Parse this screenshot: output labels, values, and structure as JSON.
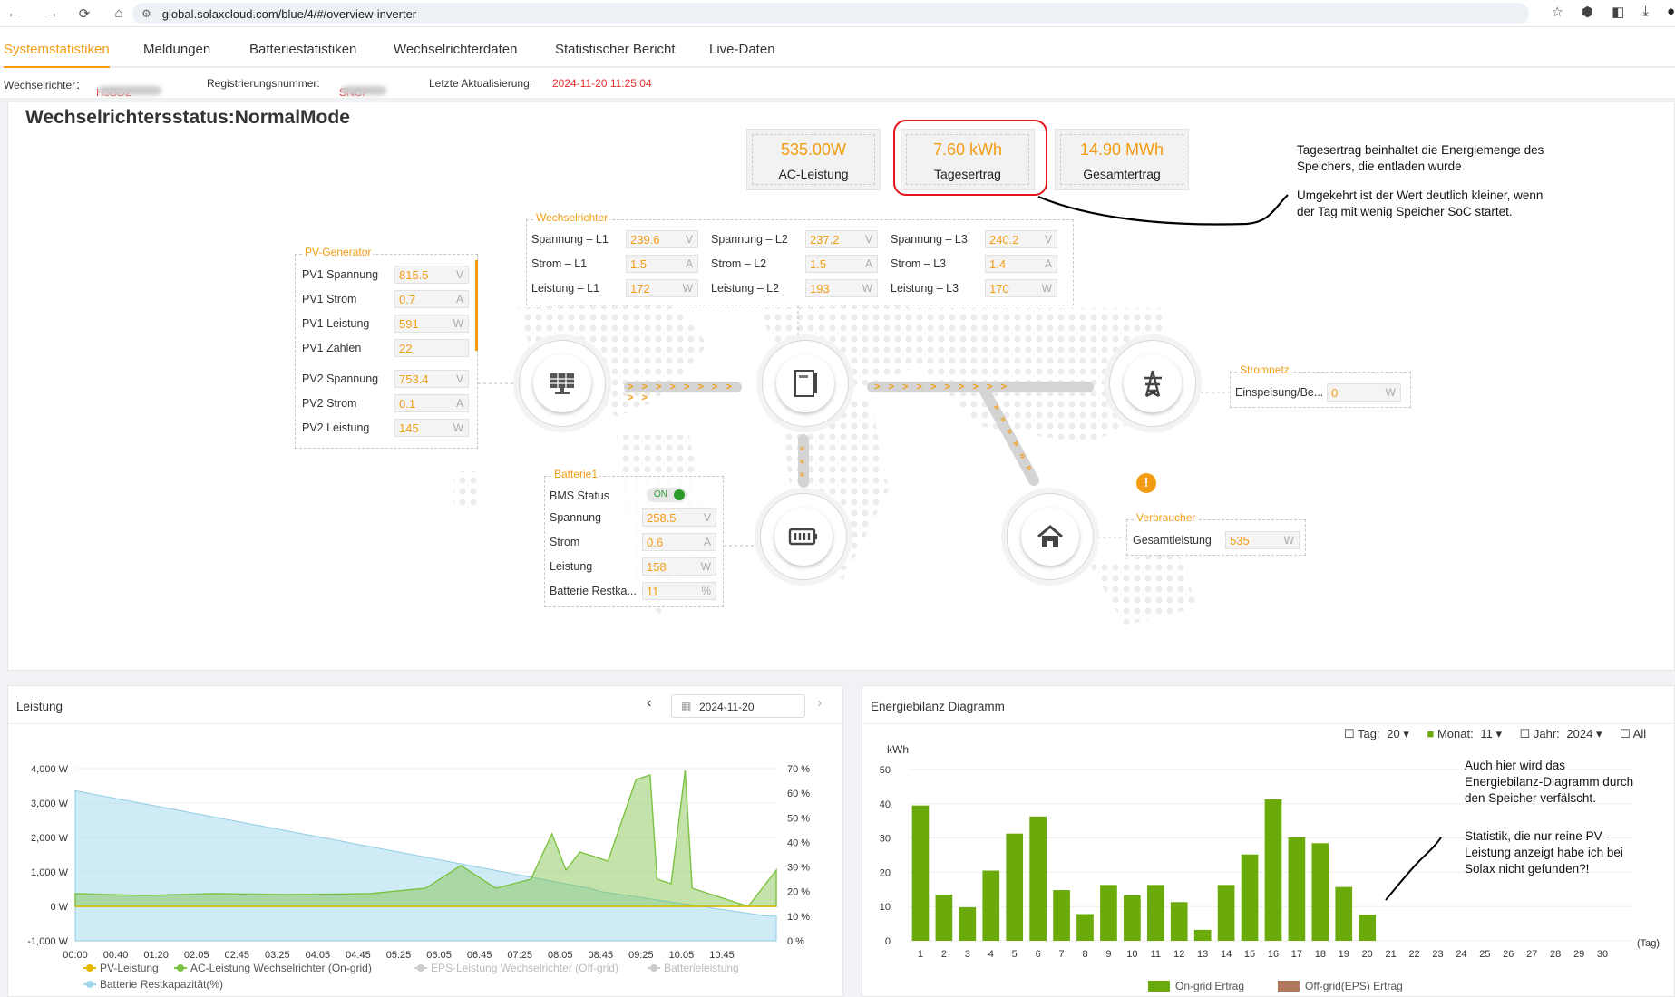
{
  "browser": {
    "url": "global.solaxcloud.com/blue/4/#/overview-inverter"
  },
  "tabs": [
    "Systemstatistiken",
    "Meldungen",
    "Batteriestatistiken",
    "Wechselrichterdaten",
    "Statistischer Bericht",
    "Live-Daten"
  ],
  "infobar": {
    "inverter_label": "Wechselrichter：",
    "inverter_value": "H3BD2",
    "reg_label": "Registrierungsnummer:",
    "reg_value": "SNCP",
    "update_label": "Letzte Aktualisierung:",
    "update_value": "2024-11-20 11:25:04"
  },
  "status_title": "Wechselrichtersstatus:NormalMode",
  "kpis": [
    {
      "value": "535.00W",
      "label": "AC-Leistung"
    },
    {
      "value": "7.60 kWh",
      "label": "Tagesertrag"
    },
    {
      "value": "14.90 MWh",
      "label": "Gesamtertrag"
    }
  ],
  "annotation_top": {
    "line1": "Tagesertrag beinhaltet die Energiemenge des",
    "line2": "Speichers, die entladen wurde",
    "line3": "Umgekehrt ist der Wert deutlich kleiner, wenn",
    "line4": "der Tag mit wenig Speicher SoC startet."
  },
  "pv": {
    "title": "PV-Generator",
    "rows": [
      {
        "label": "PV1 Spannung",
        "value": "815.5",
        "unit": "V"
      },
      {
        "label": "PV1 Strom",
        "value": "0.7",
        "unit": "A"
      },
      {
        "label": "PV1 Leistung",
        "value": "591",
        "unit": "W"
      },
      {
        "label": "PV1 Zahlen",
        "value": "22",
        "unit": ""
      },
      {
        "label": "PV2 Spannung",
        "value": "753.4",
        "unit": "V"
      },
      {
        "label": "PV2 Strom",
        "value": "0.1",
        "unit": "A"
      },
      {
        "label": "PV2 Leistung",
        "value": "145",
        "unit": "W"
      }
    ]
  },
  "inverter": {
    "title": "Wechselrichter",
    "cells": [
      {
        "label": "Spannung – L1",
        "value": "239.6",
        "unit": "V"
      },
      {
        "label": "Spannung – L2",
        "value": "237.2",
        "unit": "V"
      },
      {
        "label": "Spannung – L3",
        "value": "240.2",
        "unit": "V"
      },
      {
        "label": "Strom – L1",
        "value": "1.5",
        "unit": "A"
      },
      {
        "label": "Strom – L2",
        "value": "1.5",
        "unit": "A"
      },
      {
        "label": "Strom – L3",
        "value": "1.4",
        "unit": "A"
      },
      {
        "label": "Leistung – L1",
        "value": "172",
        "unit": "W"
      },
      {
        "label": "Leistung – L2",
        "value": "193",
        "unit": "W"
      },
      {
        "label": "Leistung – L3",
        "value": "170",
        "unit": "W"
      }
    ]
  },
  "grid": {
    "title": "Stromnetz",
    "label": "Einspeisung/Be...",
    "value": "0",
    "unit": "W"
  },
  "battery": {
    "title": "Batterie1",
    "bms_label": "BMS Status",
    "bms_value": "ON",
    "rows": [
      {
        "label": "Spannung",
        "value": "258.5",
        "unit": "V"
      },
      {
        "label": "Strom",
        "value": "0.6",
        "unit": "A"
      },
      {
        "label": "Leistung",
        "value": "158",
        "unit": "W"
      },
      {
        "label": "Batterie Restka...",
        "value": "11",
        "unit": "%"
      }
    ]
  },
  "consumer": {
    "title": "Verbraucher",
    "label": "Gesamtleistung",
    "value": "535",
    "unit": "W"
  },
  "flow_arrows": "> > > > > > > > > >",
  "power_panel": {
    "title": "Leistung",
    "date": "2024-11-20",
    "y_left": [
      "4,000 W",
      "3,000 W",
      "2,000 W",
      "1,000 W",
      "0 W",
      "-1,000 W"
    ],
    "y_right": [
      "70 %",
      "60 %",
      "50 %",
      "40 %",
      "30 %",
      "20 %",
      "10 %",
      "0 %"
    ],
    "x_ticks": [
      "00:00",
      "00:40",
      "01:20",
      "02:05",
      "02:45",
      "03:25",
      "04:05",
      "04:45",
      "05:25",
      "06:05",
      "06:45",
      "07:25",
      "08:05",
      "08:45",
      "09:25",
      "10:05",
      "10:45"
    ],
    "legend": [
      "PV-Leistung",
      "AC-Leistung Wechselrichter (On-grid)",
      "EPS-Leistung Wechselrichter (Off-grid)",
      "Batterieleistung",
      "Batterie Restkapazität(%)"
    ],
    "colors": {
      "pv": "#e6b800",
      "ac": "#7cc242",
      "soc": "#9fd8ec"
    }
  },
  "energy_panel": {
    "title": "Energiebilanz Diagramm",
    "filters": {
      "tag_label": "Tag:",
      "tag_value": "20 ▾",
      "monat_label": "Monat:",
      "monat_value": "11 ▾",
      "jahr_label": "Jahr:",
      "jahr_value": "2024 ▾",
      "alle_label": "All"
    },
    "unit": "kWh",
    "x_suffix": "(Tag)",
    "legend": [
      "On-grid Ertrag",
      "Off-grid(EPS) Ertrag"
    ],
    "annotation": {
      "l1": "Auch hier wird das",
      "l2": "Energiebilanz-Diagramm durch",
      "l3": "den Speicher verfälscht.",
      "l4": "Statistik, die nur reine PV-",
      "l5": "Leistung anzeigt habe ich bei",
      "l6": "Solax nicht gefunden?!"
    }
  },
  "chart_data": {
    "type": "bar",
    "categories": [
      "1",
      "2",
      "3",
      "4",
      "5",
      "6",
      "7",
      "8",
      "9",
      "10",
      "11",
      "12",
      "13",
      "14",
      "15",
      "16",
      "17",
      "18",
      "19",
      "20",
      "21",
      "22",
      "23",
      "24",
      "25",
      "26",
      "27",
      "28",
      "29",
      "30"
    ],
    "series": [
      {
        "name": "On-grid Ertrag",
        "values": [
          39.5,
          13.5,
          9.8,
          20.5,
          31.3,
          36.3,
          14.8,
          7.8,
          16.3,
          13.3,
          16.3,
          11.3,
          3.2,
          16.3,
          25.2,
          41.3,
          30.2,
          28.5,
          15.7,
          7.6,
          0,
          0,
          0,
          0,
          0,
          0,
          0,
          0,
          0,
          0
        ]
      },
      {
        "name": "Off-grid(EPS) Ertrag",
        "values": [
          0,
          0,
          0,
          0,
          0,
          0,
          0,
          0,
          0,
          0,
          0,
          0,
          0,
          0,
          0,
          0,
          0,
          0,
          0,
          0,
          0,
          0,
          0,
          0,
          0,
          0,
          0,
          0,
          0,
          0
        ]
      }
    ],
    "ylabel": "kWh",
    "xlabel": "(Tag)",
    "y_ticks": [
      0,
      10,
      20,
      30,
      40,
      50
    ],
    "ylim": [
      0,
      50
    ],
    "colors": {
      "on_grid": "#6aaa0a",
      "off_grid": "#b07a5a"
    }
  }
}
